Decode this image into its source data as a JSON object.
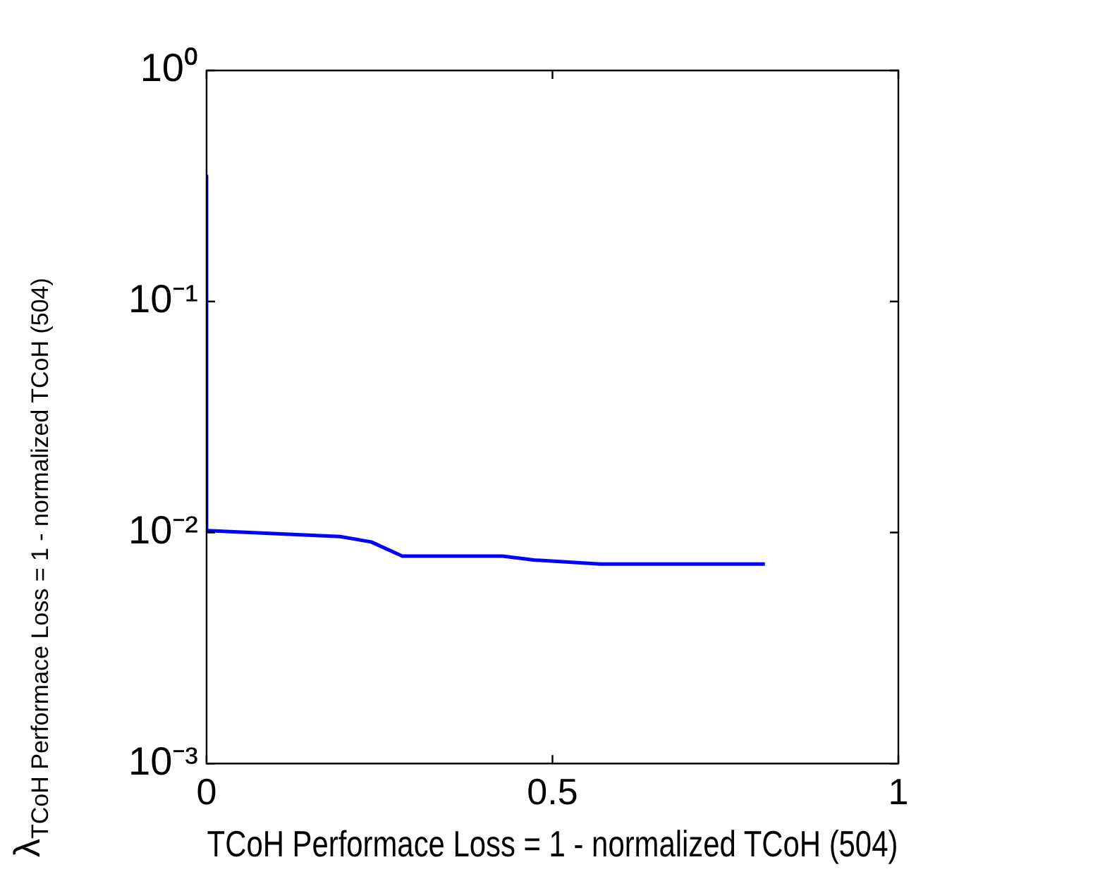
{
  "chart_data": {
    "type": "line",
    "xlabel": "TCoH Performace Loss = 1 - normalized TCoH (504)",
    "ylabel": "λ$_{TCoH Performace Loss = 1 - normalized TCoH (504)}$",
    "x": [
      0,
      0,
      0.193,
      0.238,
      0.283,
      0.428,
      0.473,
      0.569,
      0.807
    ],
    "series": [
      {
        "color": "#0000ff",
        "values": [
          0.35,
          0.0102,
          0.0096,
          0.0091,
          0.0079,
          0.0079,
          0.0076,
          0.0073,
          0.0073
        ]
      }
    ],
    "xlim": [
      0,
      1
    ],
    "xticks": [
      0,
      0.5,
      1
    ],
    "ylim": [
      0.001,
      1
    ],
    "yticks": [
      {
        "value": 0.001,
        "label": "10⁻³"
      },
      {
        "value": 0.01,
        "label": "10⁻²"
      },
      {
        "value": 0.1,
        "label": "10⁻¹"
      },
      {
        "value": 1,
        "label": "10⁰"
      }
    ],
    "log": "y",
    "grid": false,
    "marker": "none",
    "line_style": "solid"
  }
}
